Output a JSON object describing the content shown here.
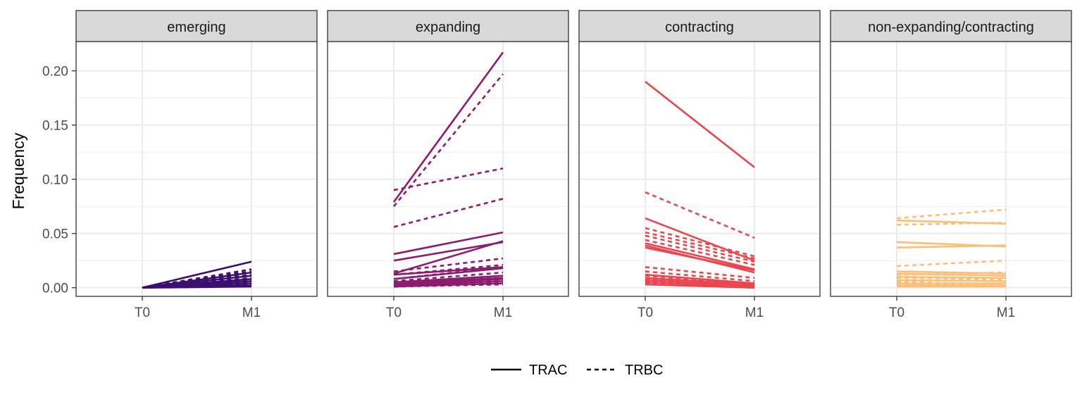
{
  "chart_data": {
    "type": "line",
    "ylabel": "Frequency",
    "xlabel": "",
    "x_categories": [
      "T0",
      "M1"
    ],
    "ylim": [
      -0.008,
      0.227
    ],
    "y_ticks": [
      0.0,
      0.05,
      0.1,
      0.15,
      0.2
    ],
    "y_tick_labels": [
      "0.00",
      "0.05",
      "0.10",
      "0.15",
      "0.20"
    ],
    "y_minor_ticks": [
      0.025,
      0.075,
      0.125,
      0.175,
      0.225
    ],
    "grid": true,
    "legend": {
      "position": "bottom",
      "items": [
        {
          "label": "TRAC",
          "linetype": "solid"
        },
        {
          "label": "TRBC",
          "linetype": "dashed"
        }
      ]
    },
    "panels": [
      {
        "name": "emerging",
        "color": "#3b0f6f",
        "lines": [
          {
            "chain": "TRAC",
            "values": [
              0.0,
              0.024
            ]
          },
          {
            "chain": "TRAC",
            "values": [
              0.0,
              0.014
            ]
          },
          {
            "chain": "TRAC",
            "values": [
              0.0,
              0.011
            ]
          },
          {
            "chain": "TRAC",
            "values": [
              0.0,
              0.008
            ]
          },
          {
            "chain": "TRAC",
            "values": [
              0.0,
              0.006
            ]
          },
          {
            "chain": "TRAC",
            "values": [
              0.0,
              0.004
            ]
          },
          {
            "chain": "TRAC",
            "values": [
              0.0,
              0.002
            ]
          },
          {
            "chain": "TRAC",
            "values": [
              0.0,
              0.001
            ]
          },
          {
            "chain": "TRBC",
            "values": [
              0.0,
              0.017
            ]
          },
          {
            "chain": "TRBC",
            "values": [
              0.0,
              0.015
            ]
          },
          {
            "chain": "TRBC",
            "values": [
              0.0,
              0.012
            ]
          },
          {
            "chain": "TRBC",
            "values": [
              0.0,
              0.009
            ]
          },
          {
            "chain": "TRBC",
            "values": [
              0.0,
              0.007
            ]
          },
          {
            "chain": "TRBC",
            "values": [
              0.0,
              0.005
            ]
          },
          {
            "chain": "TRBC",
            "values": [
              0.0,
              0.003
            ]
          },
          {
            "chain": "TRBC",
            "values": [
              0.0,
              0.002
            ]
          }
        ]
      },
      {
        "name": "expanding",
        "color": "#8c1d6e",
        "lines": [
          {
            "chain": "TRAC",
            "values": [
              0.079,
              0.217
            ]
          },
          {
            "chain": "TRAC",
            "values": [
              0.031,
              0.051
            ]
          },
          {
            "chain": "TRAC",
            "values": [
              0.025,
              0.042
            ]
          },
          {
            "chain": "TRAC",
            "values": [
              0.013,
              0.043
            ]
          },
          {
            "chain": "TRAC",
            "values": [
              0.012,
              0.019
            ]
          },
          {
            "chain": "TRAC",
            "values": [
              0.008,
              0.018
            ]
          },
          {
            "chain": "TRAC",
            "values": [
              0.005,
              0.011
            ]
          },
          {
            "chain": "TRAC",
            "values": [
              0.004,
              0.009
            ]
          },
          {
            "chain": "TRAC",
            "values": [
              0.003,
              0.008
            ]
          },
          {
            "chain": "TRAC",
            "values": [
              0.002,
              0.006
            ]
          },
          {
            "chain": "TRAC",
            "values": [
              0.001,
              0.004
            ]
          },
          {
            "chain": "TRBC",
            "values": [
              0.075,
              0.197
            ]
          },
          {
            "chain": "TRBC",
            "values": [
              0.09,
              0.11
            ]
          },
          {
            "chain": "TRBC",
            "values": [
              0.056,
              0.082
            ]
          },
          {
            "chain": "TRBC",
            "values": [
              0.015,
              0.027
            ]
          },
          {
            "chain": "TRBC",
            "values": [
              0.012,
              0.021
            ]
          },
          {
            "chain": "TRBC",
            "values": [
              0.008,
              0.019
            ]
          },
          {
            "chain": "TRBC",
            "values": [
              0.006,
              0.014
            ]
          },
          {
            "chain": "TRBC",
            "values": [
              0.004,
              0.011
            ]
          },
          {
            "chain": "TRBC",
            "values": [
              0.003,
              0.009
            ]
          },
          {
            "chain": "TRBC",
            "values": [
              0.002,
              0.007
            ]
          },
          {
            "chain": "TRBC",
            "values": [
              0.001,
              0.005
            ]
          },
          {
            "chain": "TRBC",
            "values": [
              0.001,
              0.003
            ]
          }
        ]
      },
      {
        "name": "contracting",
        "color": "#e8474f",
        "lines": [
          {
            "chain": "TRAC",
            "values": [
              0.19,
              0.111
            ]
          },
          {
            "chain": "TRAC",
            "values": [
              0.064,
              0.025
            ]
          },
          {
            "chain": "TRAC",
            "values": [
              0.041,
              0.017
            ]
          },
          {
            "chain": "TRAC",
            "values": [
              0.039,
              0.014
            ]
          },
          {
            "chain": "TRAC",
            "values": [
              0.037,
              0.016
            ]
          },
          {
            "chain": "TRAC",
            "values": [
              0.012,
              0.004
            ]
          },
          {
            "chain": "TRAC",
            "values": [
              0.009,
              0.003
            ]
          },
          {
            "chain": "TRAC",
            "values": [
              0.007,
              0.002
            ]
          },
          {
            "chain": "TRAC",
            "values": [
              0.005,
              0.001
            ]
          },
          {
            "chain": "TRAC",
            "values": [
              0.003,
              0.0
            ]
          },
          {
            "chain": "TRBC",
            "values": [
              0.088,
              0.046
            ]
          },
          {
            "chain": "TRBC",
            "values": [
              0.055,
              0.029
            ]
          },
          {
            "chain": "TRBC",
            "values": [
              0.051,
              0.027
            ]
          },
          {
            "chain": "TRBC",
            "values": [
              0.048,
              0.024
            ]
          },
          {
            "chain": "TRBC",
            "values": [
              0.044,
              0.021
            ]
          },
          {
            "chain": "TRBC",
            "values": [
              0.019,
              0.009
            ]
          },
          {
            "chain": "TRBC",
            "values": [
              0.015,
              0.006
            ]
          },
          {
            "chain": "TRBC",
            "values": [
              0.011,
              0.004
            ]
          },
          {
            "chain": "TRBC",
            "values": [
              0.008,
              0.002
            ]
          },
          {
            "chain": "TRBC",
            "values": [
              0.006,
              0.001
            ]
          },
          {
            "chain": "TRBC",
            "values": [
              0.004,
              0.0
            ]
          }
        ]
      },
      {
        "name": "non-expanding/contracting",
        "color": "#fbbf78",
        "lines": [
          {
            "chain": "TRAC",
            "values": [
              0.062,
              0.059
            ]
          },
          {
            "chain": "TRAC",
            "values": [
              0.042,
              0.038
            ]
          },
          {
            "chain": "TRAC",
            "values": [
              0.037,
              0.039
            ]
          },
          {
            "chain": "TRAC",
            "values": [
              0.015,
              0.013
            ]
          },
          {
            "chain": "TRAC",
            "values": [
              0.013,
              0.011
            ]
          },
          {
            "chain": "TRAC",
            "values": [
              0.01,
              0.009
            ]
          },
          {
            "chain": "TRAC",
            "values": [
              0.007,
              0.006
            ]
          },
          {
            "chain": "TRAC",
            "values": [
              0.004,
              0.004
            ]
          },
          {
            "chain": "TRAC",
            "values": [
              0.002,
              0.002
            ]
          },
          {
            "chain": "TRAC",
            "values": [
              0.001,
              0.001
            ]
          },
          {
            "chain": "TRBC",
            "values": [
              0.064,
              0.072
            ]
          },
          {
            "chain": "TRBC",
            "values": [
              0.058,
              0.06
            ]
          },
          {
            "chain": "TRBC",
            "values": [
              0.02,
              0.025
            ]
          },
          {
            "chain": "TRBC",
            "values": [
              0.012,
              0.014
            ]
          },
          {
            "chain": "TRBC",
            "values": [
              0.009,
              0.008
            ]
          },
          {
            "chain": "TRBC",
            "values": [
              0.006,
              0.007
            ]
          },
          {
            "chain": "TRBC",
            "values": [
              0.005,
              0.003
            ]
          },
          {
            "chain": "TRBC",
            "values": [
              0.003,
              0.002
            ]
          }
        ]
      }
    ]
  }
}
